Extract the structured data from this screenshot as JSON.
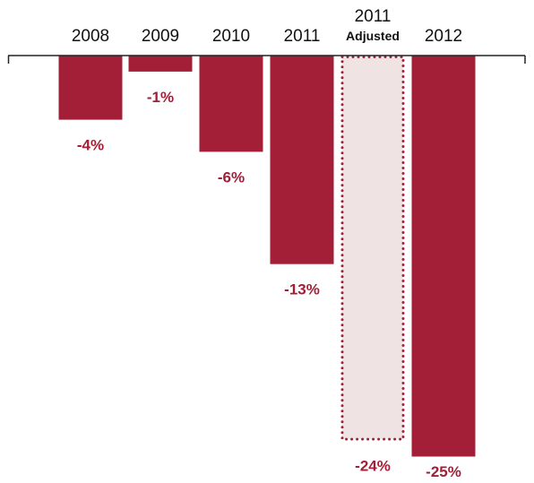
{
  "chart_data": {
    "type": "bar",
    "categories": [
      {
        "label": "2008",
        "sublabel": "",
        "value": -4,
        "value_label": "-4%",
        "style": "solid"
      },
      {
        "label": "2009",
        "sublabel": "",
        "value": -1,
        "value_label": "-1%",
        "style": "solid"
      },
      {
        "label": "2010",
        "sublabel": "",
        "value": -6,
        "value_label": "-6%",
        "style": "solid"
      },
      {
        "label": "2011",
        "sublabel": "",
        "value": -13,
        "value_label": "-13%",
        "style": "solid"
      },
      {
        "label": "2011",
        "sublabel": "Adjusted",
        "value": -24,
        "value_label": "-24%",
        "style": "dotted"
      },
      {
        "label": "2012",
        "sublabel": "",
        "value": -25,
        "value_label": "-25%",
        "style": "solid"
      }
    ],
    "title": "",
    "xlabel": "",
    "ylabel": "",
    "ylim": [
      -25,
      0
    ],
    "grid": false,
    "colors": {
      "bar": "#a31e37",
      "adjusted_fill": "#f0e3e4",
      "adjusted_border": "#a31e37",
      "value_label": "#a31e37",
      "axis": "#222222",
      "category_label": "#111111"
    }
  }
}
